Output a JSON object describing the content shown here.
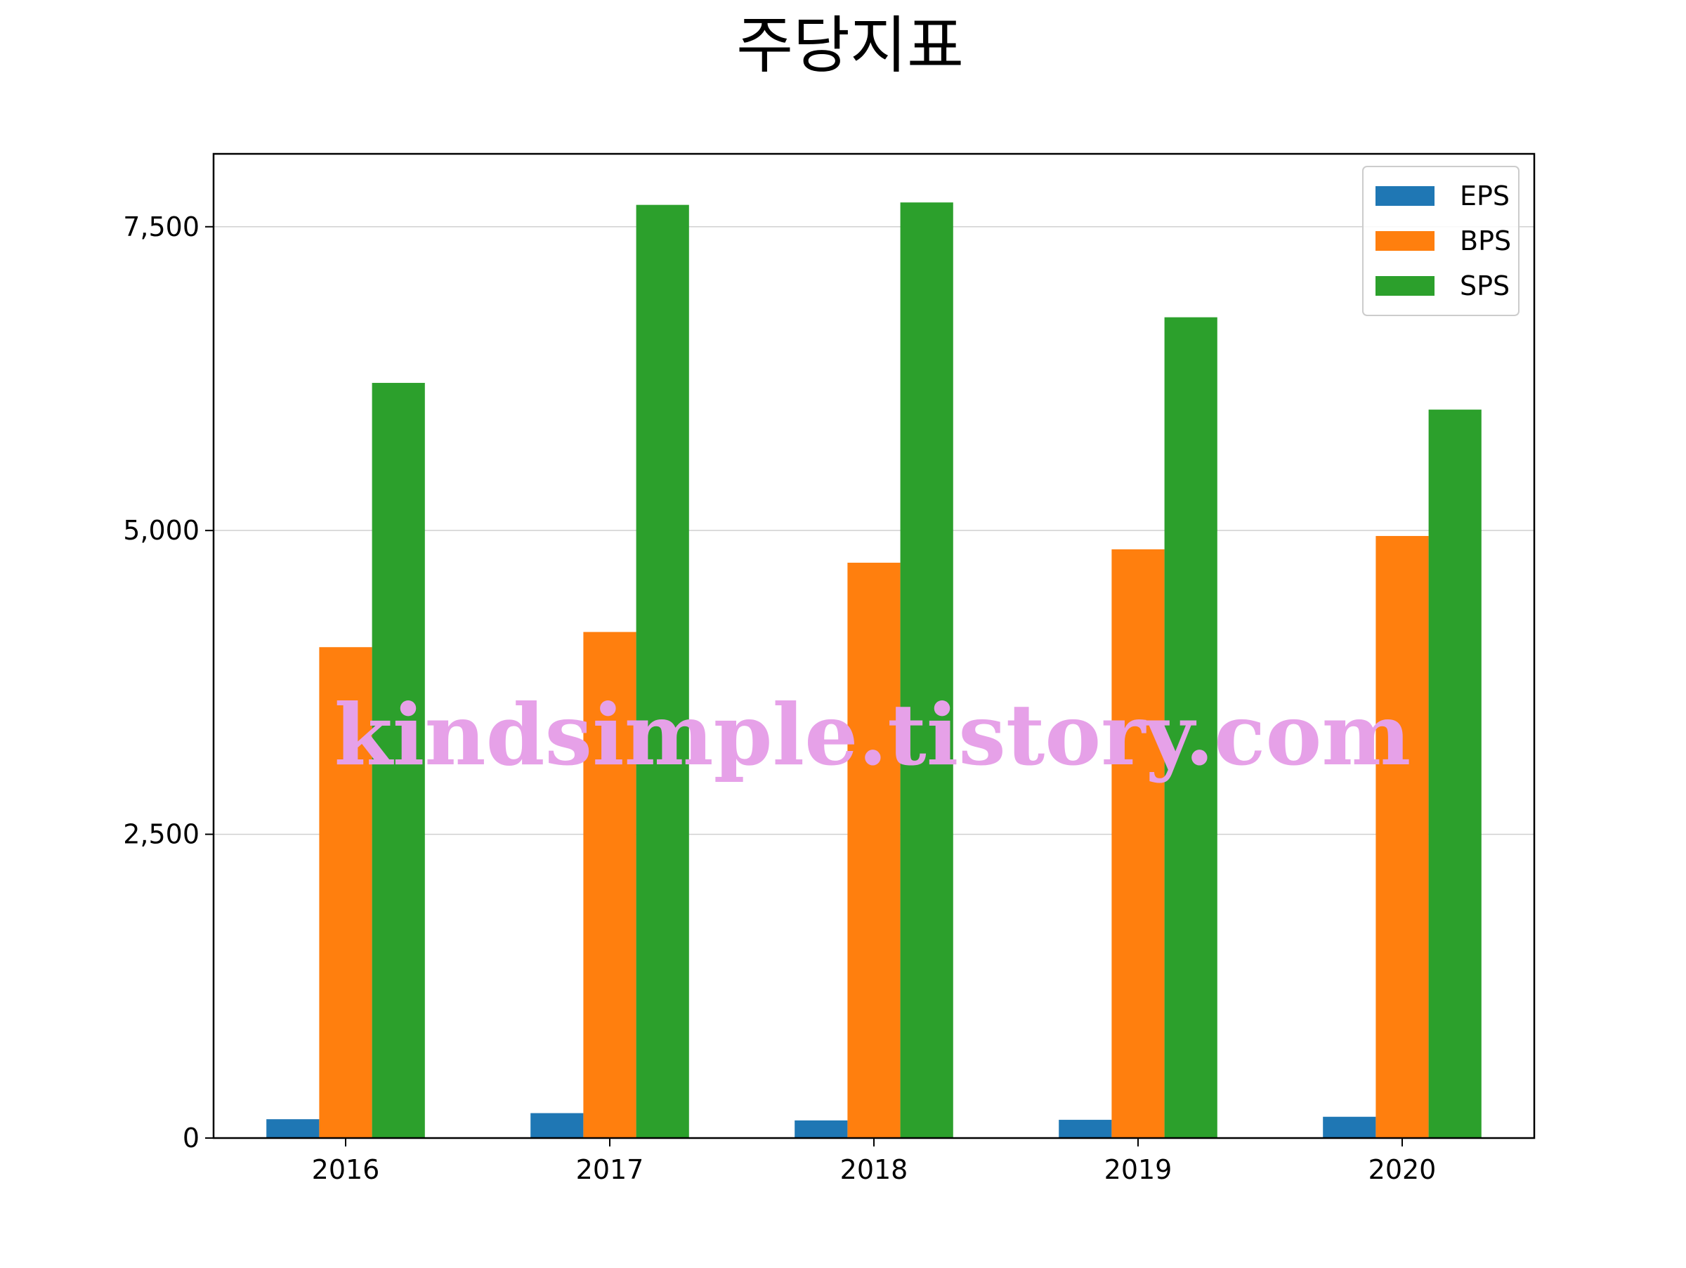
{
  "chart_data": {
    "type": "bar",
    "title": "주당지표",
    "xlabel": "",
    "ylabel": "",
    "categories": [
      "2016",
      "2017",
      "2018",
      "2019",
      "2020"
    ],
    "series": [
      {
        "name": "EPS",
        "color": "#1f77b4",
        "values": [
          155,
          205,
          145,
          150,
          175
        ]
      },
      {
        "name": "BPS",
        "color": "#ff7f0e",
        "values": [
          4040,
          4165,
          4735,
          4845,
          4955
        ]
      },
      {
        "name": "SPS",
        "color": "#2ca02c",
        "values": [
          6215,
          7680,
          7700,
          6755,
          5995
        ]
      }
    ],
    "ylim": [
      0,
      8100
    ],
    "yticks": [
      {
        "value": 0,
        "label": "0"
      },
      {
        "value": 2500,
        "label": "2,500"
      },
      {
        "value": 5000,
        "label": "5,000"
      },
      {
        "value": 7500,
        "label": "7,500"
      }
    ],
    "grid": {
      "y": true,
      "x": false
    },
    "legend_position": "top-right",
    "watermark": "kindsimple.tistory.com"
  }
}
